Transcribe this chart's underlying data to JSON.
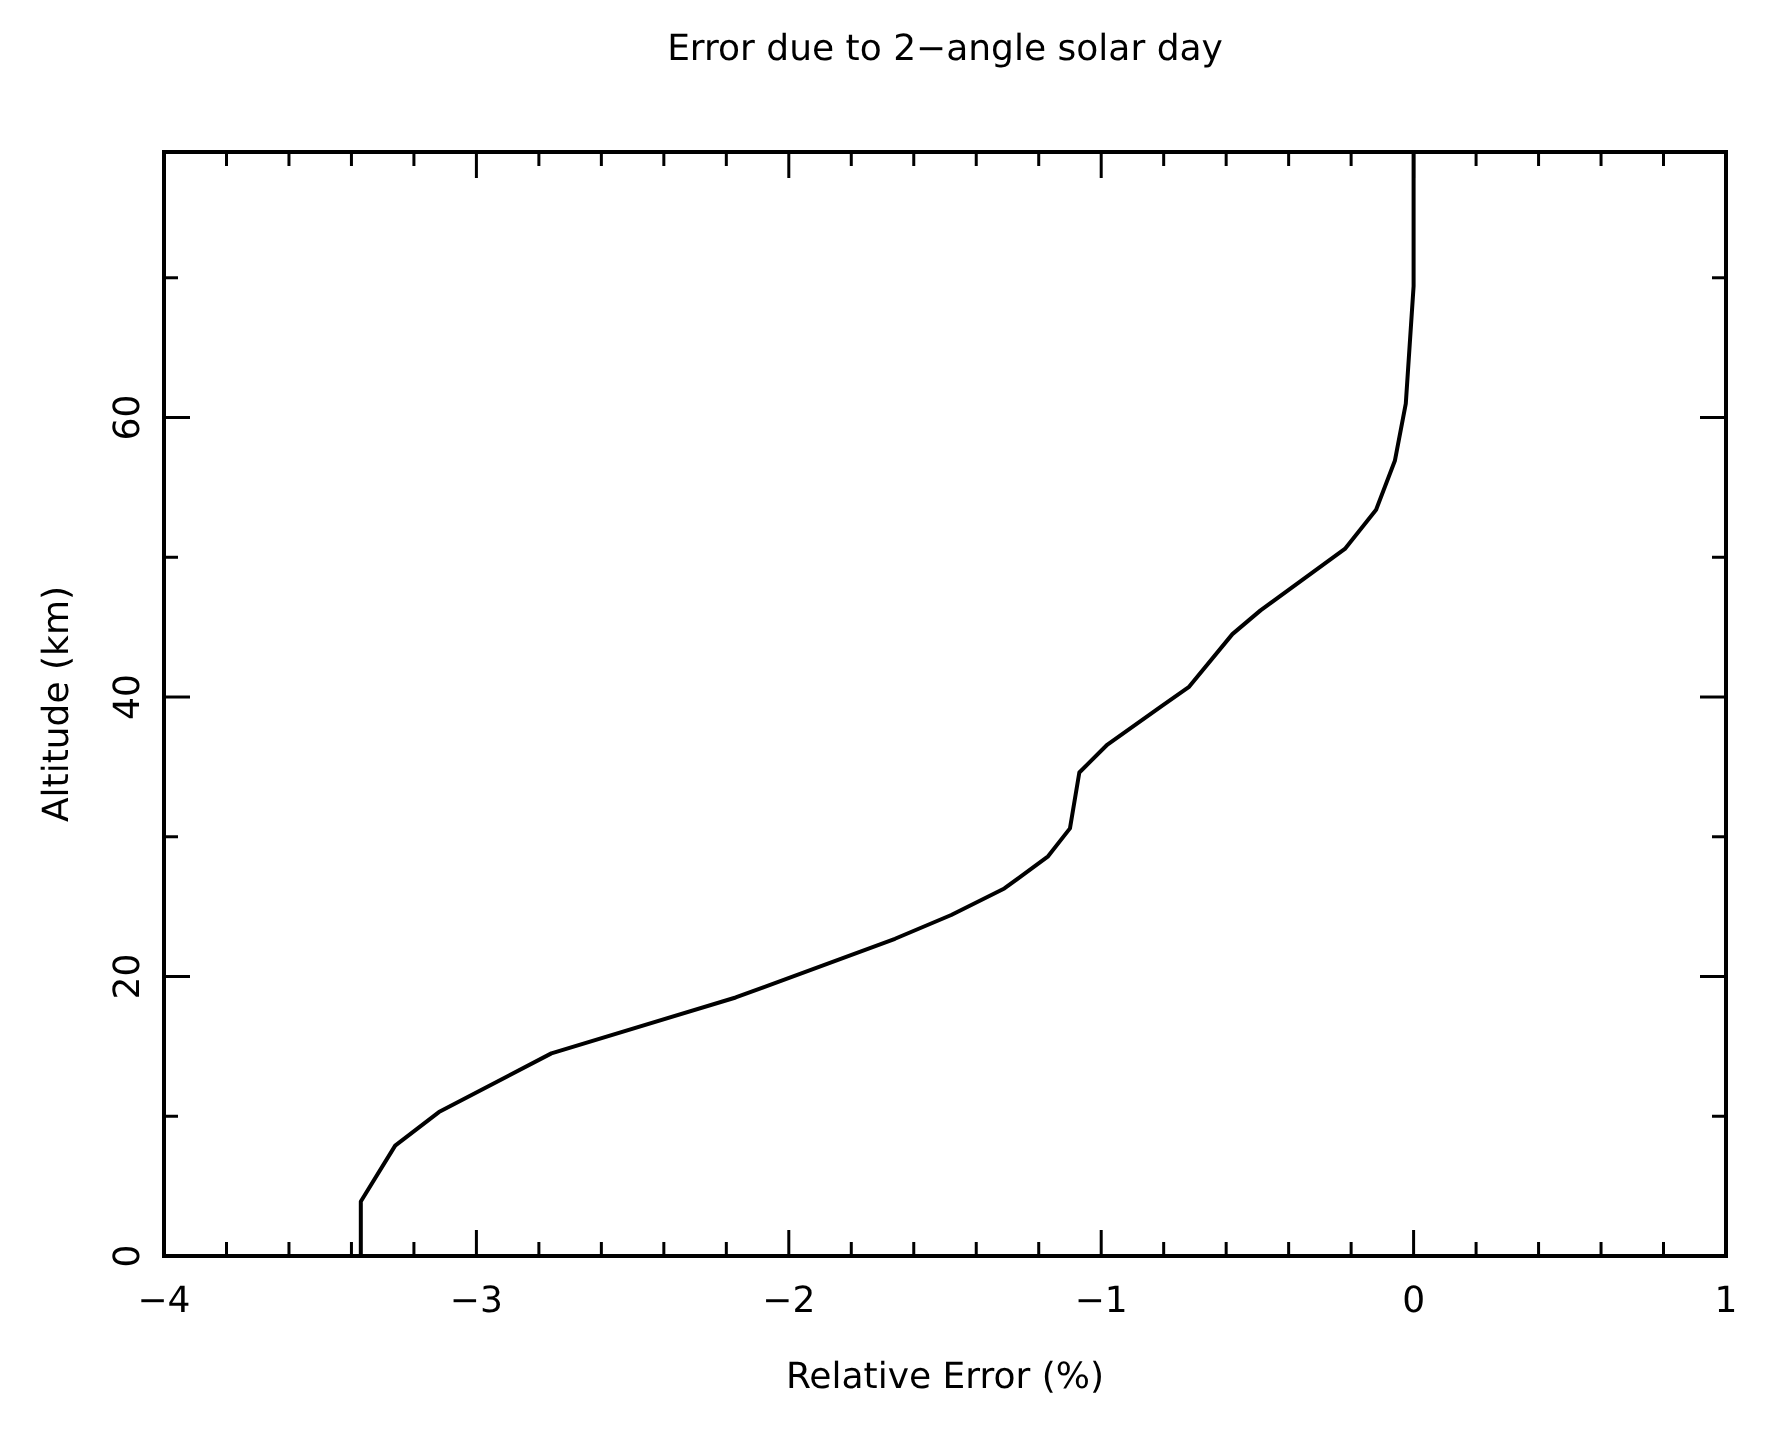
{
  "chart_data": {
    "type": "line",
    "title": "Error due to 2−angle solar day",
    "xlabel": "Relative Error (%)",
    "ylabel": "Altitude (km)",
    "xlim": [
      -4,
      1
    ],
    "xticks": [
      -4,
      {
        "value": -3.8,
        "label": null
      },
      {
        "value": -3.6,
        "label": null
      },
      {
        "value": -3.4,
        "label": null
      },
      {
        "value": -3.2,
        "label": null
      },
      -3,
      {
        "value": -2.8,
        "label": null
      },
      {
        "value": -2.6,
        "label": null
      },
      {
        "value": -2.4,
        "label": null
      },
      {
        "value": -2.2,
        "label": null
      },
      -2,
      {
        "value": -1.8,
        "label": null
      },
      {
        "value": -1.6,
        "label": null
      },
      {
        "value": -1.4,
        "label": null
      },
      {
        "value": -1.2,
        "label": null
      },
      -1,
      {
        "value": -0.8,
        "label": null
      },
      {
        "value": -0.6,
        "label": null
      },
      {
        "value": -0.4,
        "label": null
      },
      {
        "value": -0.2,
        "label": null
      },
      0,
      {
        "value": 0.2,
        "label": null
      },
      {
        "value": 0.4,
        "label": null
      },
      {
        "value": 0.6,
        "label": null
      },
      {
        "value": 0.8,
        "label": null
      },
      1
    ],
    "ylim": [
      0,
      79
    ],
    "yticks": [
      0,
      {
        "value": 10,
        "label": null
      },
      20,
      {
        "value": 30,
        "label": null
      },
      40,
      {
        "value": 50,
        "label": null
      },
      60,
      {
        "value": 70,
        "label": null
      }
    ],
    "grid": false,
    "series": [
      {
        "color": "#000000",
        "x": [
          -3.37,
          -3.37,
          -3.26,
          -3.12,
          -2.76,
          -2.17,
          -1.66,
          -1.48,
          -1.31,
          -1.17,
          -1.1,
          -1.07,
          -0.98,
          -0.81,
          -0.72,
          -0.58,
          -0.49,
          -0.22,
          -0.12,
          -0.06,
          -0.025,
          0,
          0
        ],
        "values": [
          0,
          3.9,
          7.9,
          10.3,
          14.5,
          18.5,
          22.7,
          24.4,
          26.3,
          28.6,
          30.6,
          34.6,
          36.6,
          39.3,
          40.7,
          44.5,
          46.2,
          50.6,
          53.4,
          56.9,
          61,
          69.4,
          79
        ]
      }
    ]
  }
}
